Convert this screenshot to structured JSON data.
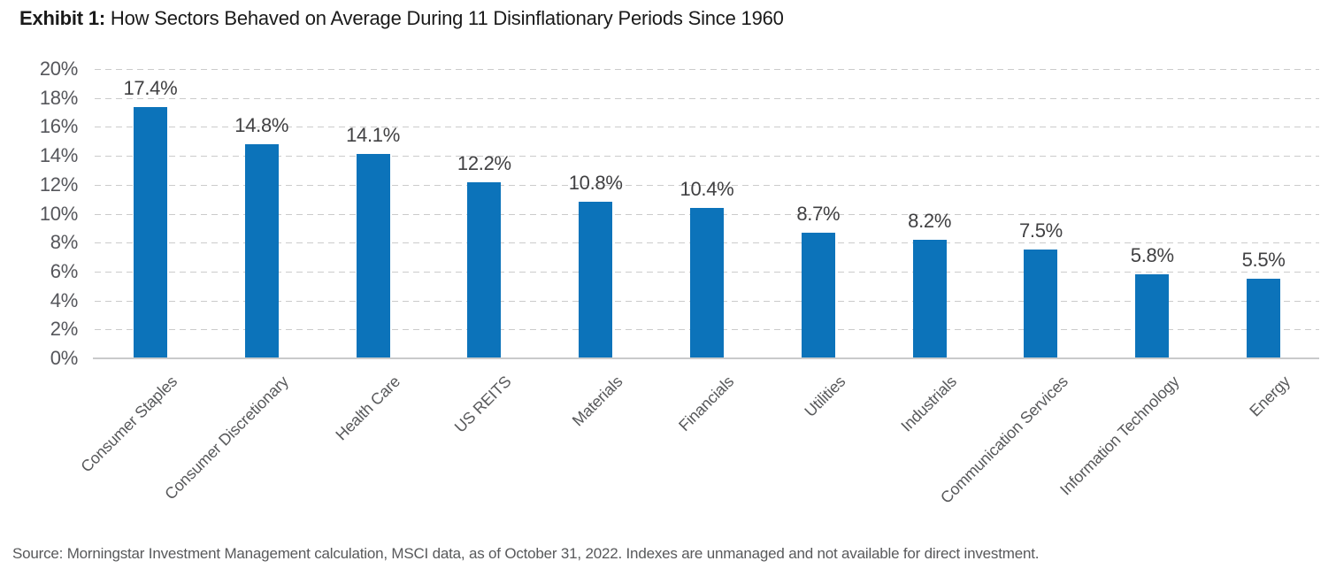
{
  "title": {
    "exhibit": "Exhibit 1:",
    "text": " How Sectors Behaved on Average During 11 Disinflationary Periods Since 1960"
  },
  "source": "Source: Morningstar Investment Management calculation, MSCI data, as of October 31, 2022. Indexes are unmanaged and not available for direct investment.",
  "colors": {
    "bar": "#0c73ba",
    "title_text": "#1a1a1a",
    "axis_text": "#55565b",
    "value_label_text": "#404042",
    "category_text": "#58595b",
    "gridline": "#cbcbcb",
    "baseline": "#c9cacb"
  },
  "chart_data": {
    "type": "bar",
    "title": "Exhibit 1: How Sectors Behaved on Average During 11 Disinflationary Periods Since 1960",
    "categories": [
      "Consumer Staples",
      "Consumer Discretionary",
      "Health Care",
      "US REITS",
      "Materials",
      "Financials",
      "Utilities",
      "Industrials",
      "Communication Services",
      "Information Technology",
      "Energy"
    ],
    "values": [
      17.4,
      14.8,
      14.1,
      12.2,
      10.8,
      10.4,
      8.7,
      8.2,
      7.5,
      5.8,
      5.5
    ],
    "value_labels": [
      "17.4%",
      "14.8%",
      "14.1%",
      "12.2%",
      "10.8%",
      "10.4%",
      "8.7%",
      "8.2%",
      "7.5%",
      "5.8%",
      "5.5%"
    ],
    "xlabel": "",
    "ylabel": "",
    "ylim": [
      0,
      20
    ],
    "ytick_step": 2,
    "ytick_labels": [
      "0%",
      "2%",
      "4%",
      "6%",
      "8%",
      "10%",
      "12%",
      "14%",
      "16%",
      "18%",
      "20%"
    ],
    "grid": "horizontal-dashed",
    "legend": "none",
    "bar_orientation": "vertical",
    "category_label_rotation_deg": -45
  }
}
